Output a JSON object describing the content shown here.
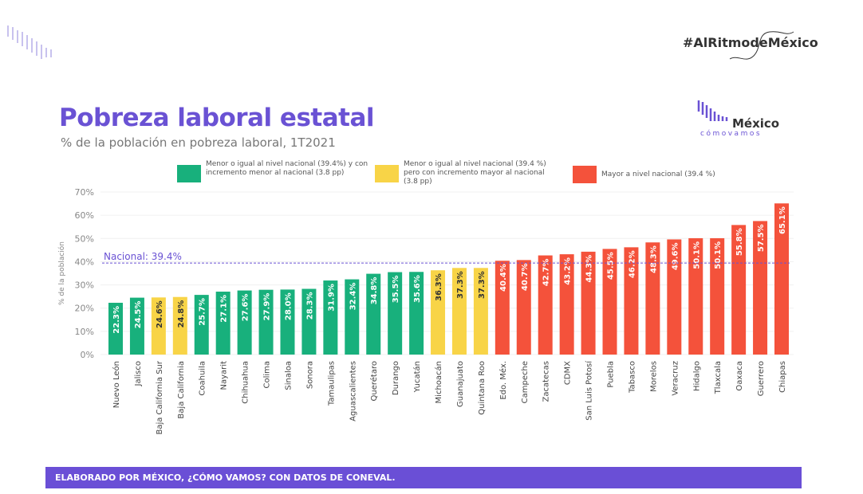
{
  "header": {
    "hashtag": "#AlRitmodeMéxico",
    "logo_word": "México",
    "logo_sub": "cómovamos"
  },
  "footer": {
    "banner": "ELABORADO POR MÉXICO, ¿CÓMO VAMOS? CON DATOS DE CONEVAL."
  },
  "colors": {
    "green": "#18b07c",
    "yellow": "#f8d447",
    "red": "#f4523b",
    "accent": "#6a52d4"
  },
  "chart_data": {
    "type": "bar",
    "title": "Pobreza laboral estatal",
    "subtitle": "% de la población en pobreza laboral, 1T2021",
    "ylabel": "% de la población",
    "ylim": [
      0,
      70
    ],
    "yticks": [
      "0%",
      "10%",
      "20%",
      "30%",
      "40%",
      "50%",
      "60%",
      "70%"
    ],
    "reference_line": {
      "label": "Nacional: 39.4%",
      "value": 39.4
    },
    "legend": [
      {
        "key": "green",
        "label": "Menor o igual al nivel nacional (39.4%) y con incremento menor al nacional (3.8 pp)"
      },
      {
        "key": "yellow",
        "label": "Menor o igual al nivel nacional (39.4 %) pero con incremento mayor al nacional (3.8 pp)"
      },
      {
        "key": "red",
        "label": "Mayor a nivel nacional (39.4 %)"
      }
    ],
    "categories": [
      "Nuevo León",
      "Jalisco",
      "Baja California Sur",
      "Baja California",
      "Coahuila",
      "Nayarit",
      "Chihuahua",
      "Colima",
      "Sinaloa",
      "Sonora",
      "Tamaulipas",
      "Aguascalientes",
      "Querétaro",
      "Durango",
      "Yucatán",
      "Michoacán",
      "Guanajuato",
      "Quintana Roo",
      "Edo. Méx.",
      "Campeche",
      "Zacatecas",
      "CDMX",
      "San Luis Potosí",
      "Puebla",
      "Tabasco",
      "Morelos",
      "Veracruz",
      "Hidalgo",
      "Tlaxcala",
      "Oaxaca",
      "Guerrero",
      "Chiapas"
    ],
    "values": [
      22.3,
      24.5,
      24.6,
      24.8,
      25.7,
      27.1,
      27.6,
      27.9,
      28.0,
      28.3,
      31.9,
      32.4,
      34.8,
      35.5,
      35.6,
      36.3,
      37.3,
      37.3,
      40.4,
      40.7,
      42.7,
      43.2,
      44.3,
      45.5,
      46.2,
      48.3,
      49.6,
      50.1,
      50.1,
      55.8,
      57.5,
      65.1
    ],
    "groups": [
      "green",
      "green",
      "yellow",
      "yellow",
      "green",
      "green",
      "green",
      "green",
      "green",
      "green",
      "green",
      "green",
      "green",
      "green",
      "green",
      "yellow",
      "yellow",
      "yellow",
      "red",
      "red",
      "red",
      "red",
      "red",
      "red",
      "red",
      "red",
      "red",
      "red",
      "red",
      "red",
      "red",
      "red"
    ],
    "labels": [
      "22.3%",
      "24.5%",
      "24.6%",
      "24.8%",
      "25.7%",
      "27.1%",
      "27.6%",
      "27.9%",
      "28.0%",
      "28.3%",
      "31.9%",
      "32.4%",
      "34.8%",
      "35.5%",
      "35.6%",
      "36.3%",
      "37.3%",
      "37.3%",
      "40.4%",
      "40.7%",
      "42.7%",
      "43.2%",
      "44.3%",
      "45.5%",
      "46.2%",
      "48.3%",
      "49.6%",
      "50.1%",
      "50.1%",
      "55.8%",
      "57.5%",
      "65.1%"
    ]
  }
}
